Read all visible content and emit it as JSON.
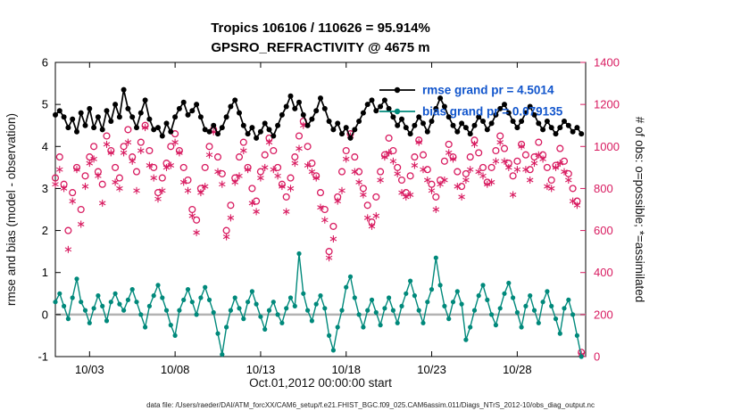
{
  "chart_data": {
    "type": "line",
    "title_line1": "Tropics 106106 / 110626 = 95.914%",
    "title_line2": "GPSRO_REFRACTIVITY @ 4675 m",
    "xlabel": "Oct.01,2012 00:00:00 start",
    "ylabel_left": "rmse and bias (model - observation)",
    "ylabel_right": "# of obs: o=possible; *=assimilated",
    "footer": "data file: /Users/raeder/DAI/ATM_forcXX/CAM6_setup/f.e21.FHIST_BGC.f09_025.CAM6assim.011/Diags_NTrS_2012-10/obs_diag_output.nc",
    "grid": false,
    "legend_position": "top-right-inside",
    "legend": [
      {
        "label": "rmse grand pr = 4.5014",
        "series": "rmse"
      },
      {
        "label": "bias grand pr = 0.079135",
        "series": "bias"
      }
    ],
    "colors": {
      "rmse": "#000000",
      "bias": "#00897b",
      "obs": "#d81b60",
      "legend_text": "#1155cc",
      "zero_line": "#b3b3b3",
      "axis": "#000000"
    },
    "xlim": [
      1,
      32
    ],
    "ylim_left": [
      -1,
      6
    ],
    "ylim_right": [
      0,
      1400
    ],
    "x_start": 1.0,
    "x_step": 0.25,
    "xticks": [
      {
        "pos": 3,
        "label": "10/03"
      },
      {
        "pos": 8,
        "label": "10/08"
      },
      {
        "pos": 13,
        "label": "10/13"
      },
      {
        "pos": 18,
        "label": "10/18"
      },
      {
        "pos": 23,
        "label": "10/23"
      },
      {
        "pos": 28,
        "label": "10/28"
      }
    ],
    "yticks_left": [
      -1,
      0,
      1,
      2,
      3,
      4,
      5,
      6
    ],
    "yticks_right": [
      0,
      200,
      400,
      600,
      800,
      1000,
      1200,
      1400
    ],
    "series": [
      {
        "name": "rmse",
        "axis": "left",
        "marker": "dot",
        "values": [
          4.75,
          4.85,
          4.7,
          4.45,
          4.65,
          4.35,
          4.8,
          4.5,
          4.9,
          4.45,
          4.7,
          4.4,
          4.85,
          4.6,
          5.0,
          4.7,
          5.35,
          4.9,
          4.7,
          4.45,
          4.8,
          5.1,
          4.65,
          4.4,
          4.45,
          4.25,
          4.55,
          4.35,
          4.7,
          4.9,
          5.05,
          4.75,
          4.85,
          5.0,
          4.7,
          4.4,
          4.35,
          4.5,
          4.3,
          4.45,
          4.7,
          4.95,
          5.1,
          4.8,
          4.5,
          4.3,
          4.45,
          4.2,
          4.35,
          4.55,
          4.4,
          4.25,
          4.5,
          4.75,
          4.95,
          5.2,
          4.9,
          5.05,
          4.75,
          4.5,
          4.65,
          4.85,
          5.15,
          4.9,
          4.6,
          4.4,
          4.55,
          4.3,
          4.45,
          4.2,
          4.4,
          4.6,
          4.8,
          5.0,
          5.1,
          4.85,
          4.95,
          5.1,
          4.9,
          4.7,
          4.5,
          4.65,
          4.45,
          4.3,
          4.5,
          4.7,
          4.55,
          4.35,
          4.6,
          4.9,
          5.15,
          4.95,
          4.7,
          4.5,
          4.35,
          4.55,
          4.45,
          4.3,
          4.5,
          4.7,
          4.6,
          4.4,
          4.55,
          4.75,
          4.9,
          5.0,
          4.8,
          4.6,
          4.45,
          4.6,
          4.8,
          4.95,
          4.75,
          4.55,
          4.4,
          4.6,
          4.45,
          4.3,
          4.45,
          4.6,
          4.5,
          4.35,
          4.45,
          4.3
        ]
      },
      {
        "name": "bias",
        "axis": "left",
        "marker": "dot",
        "values": [
          0.3,
          0.5,
          0.2,
          -0.1,
          0.4,
          0.85,
          0.3,
          0.1,
          -0.2,
          0.15,
          0.45,
          0.2,
          -0.15,
          0.3,
          0.5,
          0.25,
          0.1,
          0.35,
          0.6,
          0.3,
          0.0,
          -0.3,
          0.2,
          0.45,
          0.7,
          0.4,
          0.1,
          -0.25,
          -0.5,
          0.1,
          0.35,
          0.6,
          0.3,
          0.0,
          0.4,
          0.65,
          0.35,
          0.05,
          -0.45,
          -0.95,
          -0.3,
          0.1,
          0.4,
          0.15,
          -0.1,
          0.3,
          0.55,
          0.25,
          -0.05,
          -0.35,
          0.1,
          0.3,
          0.0,
          -0.2,
          0.15,
          0.4,
          0.2,
          1.45,
          0.5,
          0.1,
          -0.15,
          0.25,
          0.45,
          0.15,
          -0.5,
          -0.85,
          -0.3,
          0.1,
          0.65,
          0.9,
          0.4,
          0.0,
          -0.3,
          0.1,
          0.35,
          0.05,
          -0.25,
          0.15,
          0.4,
          0.1,
          -0.2,
          0.2,
          0.5,
          0.8,
          0.45,
          0.1,
          -0.2,
          0.3,
          0.6,
          1.35,
          0.7,
          0.2,
          -0.1,
          0.3,
          0.55,
          0.25,
          -0.6,
          -0.3,
          0.1,
          0.45,
          0.7,
          0.35,
          0.0,
          -0.25,
          0.15,
          0.5,
          0.75,
          0.4,
          0.05,
          -0.3,
          0.2,
          0.45,
          0.1,
          -0.2,
          0.3,
          0.55,
          0.2,
          -0.1,
          -0.45,
          0.15,
          0.35,
          0.0,
          -0.5,
          -1.0
        ]
      },
      {
        "name": "possible",
        "axis": "right",
        "marker": "circle-open",
        "values": [
          850,
          950,
          820,
          600,
          780,
          900,
          700,
          860,
          950,
          1000,
          880,
          820,
          1050,
          980,
          900,
          850,
          1000,
          1080,
          950,
          880,
          1020,
          1100,
          980,
          900,
          780,
          850,
          920,
          1000,
          1060,
          980,
          900,
          840,
          700,
          650,
          800,
          900,
          1000,
          1080,
          950,
          870,
          600,
          720,
          850,
          950,
          1020,
          900,
          800,
          740,
          880,
          960,
          1040,
          980,
          900,
          820,
          760,
          850,
          950,
          1050,
          1120,
          1000,
          920,
          860,
          780,
          700,
          500,
          620,
          760,
          880,
          980,
          1060,
          950,
          880,
          800,
          720,
          640,
          760,
          880,
          960,
          1040,
          980,
          900,
          840,
          780,
          860,
          950,
          1030,
          960,
          890,
          820,
          760,
          840,
          930,
          1010,
          950,
          880,
          810,
          870,
          950,
          1030,
          970,
          900,
          830,
          900,
          980,
          1050,
          990,
          920,
          860,
          930,
          1010,
          960,
          890,
          950,
          1020,
          960,
          900,
          840,
          910,
          990,
          930,
          870,
          800,
          740,
          20
        ]
      },
      {
        "name": "assimilated",
        "axis": "right",
        "marker": "asterisk",
        "values": [
          820,
          890,
          800,
          510,
          740,
          890,
          630,
          810,
          920,
          940,
          860,
          730,
          1010,
          970,
          830,
          800,
          970,
          1020,
          930,
          790,
          980,
          1090,
          910,
          850,
          750,
          790,
          900,
          910,
          1020,
          970,
          830,
          790,
          670,
          590,
          780,
          810,
          960,
          1070,
          880,
          820,
          570,
          660,
          830,
          860,
          980,
          890,
          730,
          690,
          850,
          900,
          1020,
          890,
          860,
          810,
          690,
          800,
          920,
          990,
          1100,
          910,
          880,
          850,
          710,
          650,
          470,
          560,
          740,
          790,
          940,
          1050,
          880,
          830,
          770,
          660,
          620,
          670,
          840,
          950,
          970,
          930,
          870,
          780,
          760,
          770,
          910,
          1020,
          890,
          840,
          790,
          700,
          820,
          840,
          970,
          940,
          810,
          760,
          840,
          890,
          1010,
          880,
          860,
          820,
          830,
          930,
          1020,
          930,
          900,
          770,
          890,
          1000,
          890,
          840,
          920,
          960,
          940,
          810,
          800,
          900,
          920,
          880,
          840,
          740,
          720,
          10
        ]
      }
    ]
  }
}
